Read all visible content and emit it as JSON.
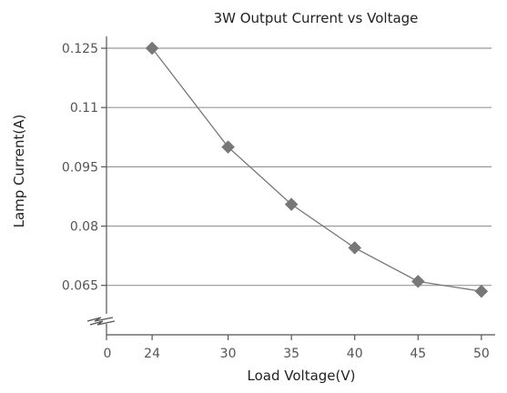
{
  "chart_data": {
    "type": "line",
    "title": "3W  Output Current vs Voltage",
    "xlabel": "Load Voltage(V)",
    "ylabel": "Lamp Current(A)",
    "x_ticks": [
      "0",
      "24",
      "30",
      "35",
      "40",
      "45",
      "50"
    ],
    "y_ticks": [
      "0.125",
      "0.11",
      "0.095",
      "0.08",
      "0.065"
    ],
    "y_tick_values": [
      0.125,
      0.11,
      0.095,
      0.08,
      0.065
    ],
    "xlim": [
      20.4,
      50.8
    ],
    "ylim": [
      0.0525,
      0.128
    ],
    "axis_break": true,
    "grid": true,
    "series": [
      {
        "x": [
          24,
          30,
          35,
          40,
          45,
          50
        ],
        "y": [
          0.125,
          0.1,
          0.0855,
          0.0745,
          0.066,
          0.0635
        ],
        "color": "#777777",
        "marker": "diamond"
      }
    ]
  }
}
